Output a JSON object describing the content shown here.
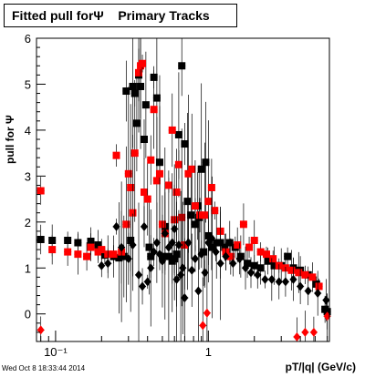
{
  "title": "Fitted pull forΨ    Primary Tracks",
  "timestamp": "Wed Oct  8 18:33:44 2014",
  "chart_data": {
    "type": "scatter",
    "title": "Fitted pull forΨ    Primary Tracks",
    "xlabel": "pT/|q| (GeV/c)",
    "ylabel": "pull for Ψ",
    "xscale": "log",
    "xlim": [
      0.075,
      6.2
    ],
    "ylim": [
      -0.6,
      6.0
    ],
    "x_ticklabels": [
      {
        "value": 0.1,
        "label": "10⁻¹"
      },
      {
        "value": 1,
        "label": "1"
      }
    ],
    "y_ticklabels": [
      0,
      1,
      2,
      3,
      4,
      5,
      6
    ],
    "grid": false,
    "legend": "none",
    "series": [
      {
        "marker": "square",
        "color": "#000000",
        "points": [
          [
            0.08,
            1.62
          ],
          [
            0.095,
            1.6
          ],
          [
            0.12,
            1.6
          ],
          [
            0.14,
            1.55
          ],
          [
            0.17,
            1.58
          ],
          [
            0.19,
            1.5
          ],
          [
            0.21,
            1.28
          ],
          [
            0.24,
            1.25
          ],
          [
            0.26,
            1.22
          ],
          [
            0.28,
            1.25
          ],
          [
            0.29,
            4.85
          ],
          [
            0.31,
            1.6
          ],
          [
            0.32,
            4.95
          ],
          [
            0.33,
            4.8
          ],
          [
            0.34,
            4.15
          ],
          [
            0.35,
            5.2
          ],
          [
            0.36,
            4.95
          ],
          [
            0.38,
            3.8
          ],
          [
            0.39,
            4.55
          ],
          [
            0.41,
            1.45
          ],
          [
            0.42,
            1.25
          ],
          [
            0.44,
            5.15
          ],
          [
            0.46,
            4.7
          ],
          [
            0.48,
            3.3
          ],
          [
            0.5,
            1.25
          ],
          [
            0.52,
            1.9
          ],
          [
            0.55,
            1.25
          ],
          [
            0.58,
            1.15
          ],
          [
            0.6,
            1.2
          ],
          [
            0.62,
            1.3
          ],
          [
            0.64,
            3.9
          ],
          [
            0.67,
            5.4
          ],
          [
            0.7,
            3.7
          ],
          [
            0.73,
            2.45
          ],
          [
            0.77,
            2.15
          ],
          [
            0.82,
            1.95
          ],
          [
            0.87,
            2.1
          ],
          [
            0.93,
            1.35
          ],
          [
            1.0,
            1.7
          ],
          [
            1.06,
            1.45
          ],
          [
            1.13,
            1.55
          ],
          [
            1.2,
            1.55
          ],
          [
            1.28,
            1.45
          ],
          [
            1.38,
            1.55
          ],
          [
            1.5,
            1.45
          ],
          [
            1.63,
            1.25
          ],
          [
            1.8,
            1.1
          ],
          [
            2.0,
            1.05
          ],
          [
            2.2,
            1.0
          ],
          [
            2.45,
            1.15
          ],
          [
            2.7,
            1.05
          ],
          [
            3.0,
            1.05
          ],
          [
            3.3,
            1.25
          ],
          [
            3.6,
            1.0
          ],
          [
            4.0,
            0.95
          ],
          [
            4.5,
            0.85
          ],
          [
            5.1,
            0.65
          ],
          [
            5.8,
            0.1
          ],
          [
            6.0,
            0.05
          ],
          [
            0.96,
            3.3
          ],
          [
            0.9,
            3.15
          ],
          [
            0.85,
            2.35
          ]
        ]
      },
      {
        "marker": "square",
        "color": "#ff0000",
        "points": [
          [
            0.08,
            2.68
          ],
          [
            0.095,
            1.4
          ],
          [
            0.12,
            1.35
          ],
          [
            0.14,
            1.3
          ],
          [
            0.16,
            1.25
          ],
          [
            0.17,
            1.45
          ],
          [
            0.19,
            1.35
          ],
          [
            0.2,
            1.4
          ],
          [
            0.22,
            1.3
          ],
          [
            0.24,
            1.3
          ],
          [
            0.25,
            3.45
          ],
          [
            0.27,
            1.35
          ],
          [
            0.29,
            1.95
          ],
          [
            0.3,
            3.05
          ],
          [
            0.31,
            2.75
          ],
          [
            0.32,
            2.2
          ],
          [
            0.33,
            3.5
          ],
          [
            0.35,
            5.25
          ],
          [
            0.36,
            5.4
          ],
          [
            0.37,
            5.45
          ],
          [
            0.38,
            2.65
          ],
          [
            0.4,
            2.5
          ],
          [
            0.42,
            3.35
          ],
          [
            0.44,
            4.45
          ],
          [
            0.46,
            2.9
          ],
          [
            0.48,
            3.05
          ],
          [
            0.5,
            1.95
          ],
          [
            0.52,
            1.75
          ],
          [
            0.55,
            2.8
          ],
          [
            0.58,
            4.0
          ],
          [
            0.6,
            2.05
          ],
          [
            0.62,
            2.65
          ],
          [
            0.64,
            3.25
          ],
          [
            0.67,
            2.1
          ],
          [
            0.7,
            1.5
          ],
          [
            0.74,
            3.05
          ],
          [
            0.78,
            3.15
          ],
          [
            0.82,
            2.35
          ],
          [
            0.88,
            2.15
          ],
          [
            0.95,
            2.15
          ],
          [
            1.0,
            2.45
          ],
          [
            1.05,
            2.75
          ],
          [
            1.1,
            2.25
          ],
          [
            1.2,
            1.8
          ],
          [
            1.3,
            1.35
          ],
          [
            1.4,
            1.25
          ],
          [
            1.55,
            1.5
          ],
          [
            1.7,
            1.95
          ],
          [
            1.85,
            1.45
          ],
          [
            2.0,
            1.6
          ],
          [
            2.2,
            1.35
          ],
          [
            2.4,
            1.3
          ],
          [
            2.65,
            1.2
          ],
          [
            2.9,
            1.05
          ],
          [
            3.2,
            1.0
          ],
          [
            3.5,
            0.95
          ],
          [
            3.9,
            0.9
          ],
          [
            4.3,
            0.85
          ],
          [
            4.8,
            0.8
          ],
          [
            5.3,
            0.6
          ]
        ]
      },
      {
        "marker": "diamond",
        "color": "#000000",
        "points": [
          [
            0.2,
            1.05
          ],
          [
            0.22,
            1.1
          ],
          [
            0.25,
            1.9
          ],
          [
            0.27,
            1.45
          ],
          [
            0.3,
            1.2
          ],
          [
            0.32,
            1.5
          ],
          [
            0.35,
            0.85
          ],
          [
            0.37,
            0.6
          ],
          [
            0.38,
            1.9
          ],
          [
            0.4,
            0.7
          ],
          [
            0.42,
            1.0
          ],
          [
            0.44,
            1.35
          ],
          [
            0.46,
            1.55
          ],
          [
            0.48,
            1.3
          ],
          [
            0.5,
            1.15
          ],
          [
            0.52,
            1.75
          ],
          [
            0.55,
            1.45
          ],
          [
            0.58,
            1.55
          ],
          [
            0.6,
            1.85
          ],
          [
            0.62,
            0.75
          ],
          [
            0.64,
            1.5
          ],
          [
            0.66,
            0.85
          ],
          [
            0.68,
            1.0
          ],
          [
            0.7,
            0.35
          ],
          [
            0.74,
            1.55
          ],
          [
            0.78,
            0.95
          ],
          [
            0.82,
            1.2
          ],
          [
            0.86,
            0.5
          ],
          [
            0.9,
            1.3
          ],
          [
            0.95,
            0.9
          ],
          [
            1.0,
            1.55
          ],
          [
            1.05,
            1.65
          ],
          [
            1.12,
            1.35
          ],
          [
            1.2,
            1.1
          ],
          [
            1.3,
            1.25
          ],
          [
            1.45,
            1.1
          ],
          [
            1.6,
            1.2
          ],
          [
            1.75,
            1.0
          ],
          [
            1.9,
            0.9
          ],
          [
            2.1,
            0.85
          ],
          [
            2.35,
            0.75
          ],
          [
            2.6,
            0.75
          ],
          [
            2.9,
            0.7
          ],
          [
            3.2,
            0.7
          ],
          [
            3.6,
            0.75
          ],
          [
            4.0,
            0.6
          ],
          [
            4.5,
            0.5
          ],
          [
            5.2,
            0.45
          ],
          [
            5.9,
            0.3
          ]
        ]
      },
      {
        "marker": "diamond",
        "color": "#ff0000",
        "points": [
          [
            0.08,
            -0.35
          ],
          [
            0.92,
            -0.25
          ],
          [
            0.98,
            0.02
          ],
          [
            3.8,
            -0.5
          ],
          [
            4.3,
            -0.4
          ],
          [
            4.9,
            -0.4
          ],
          [
            6.0,
            -0.05
          ]
        ]
      }
    ]
  }
}
